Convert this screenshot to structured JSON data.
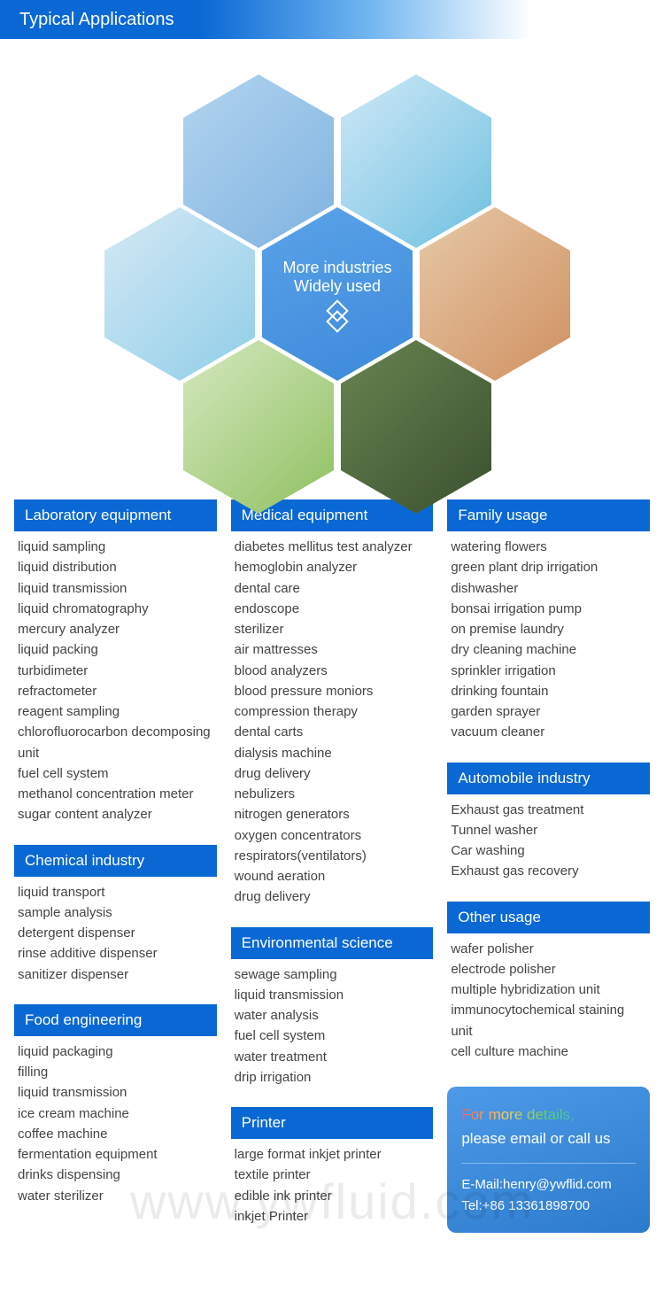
{
  "header": {
    "title": "Typical Applications"
  },
  "hex_center": {
    "line1": "More industries",
    "line2": "Widely used"
  },
  "columns": {
    "left": [
      {
        "title": "Laboratory equipment",
        "items": [
          "liquid sampling",
          "liquid distribution",
          "liquid transmission",
          "liquid chromatography",
          "mercury analyzer",
          "liquid packing",
          "turbidimeter",
          "refractometer",
          "reagent sampling",
          "chlorofluorocarbon decomposing unit",
          "fuel cell system",
          "methanol concentration meter",
          "sugar content analyzer"
        ]
      },
      {
        "title": "Chemical industry",
        "items": [
          "liquid transport",
          "sample analysis",
          "detergent dispenser",
          "rinse additive dispenser",
          "sanitizer dispenser"
        ]
      },
      {
        "title": "Food engineering",
        "items": [
          "liquid packaging",
          "filling",
          "liquid transmission",
          "ice cream machine",
          "coffee machine",
          "fermentation equipment",
          "drinks dispensing",
          "water sterilizer"
        ]
      }
    ],
    "middle": [
      {
        "title": "Medical equipment",
        "items": [
          "diabetes mellitus test analyzer",
          "hemoglobin analyzer",
          "dental care",
          "endoscope",
          "sterilizer",
          "air mattresses",
          "blood analyzers",
          "blood pressure moniors",
          "compression therapy",
          "dental carts",
          "dialysis machine",
          "drug delivery",
          "nebulizers",
          "nitrogen generators",
          "oxygen concentrators",
          "respirators(ventilators)",
          "wound aeration",
          "drug delivery"
        ]
      },
      {
        "title": "Environmental science",
        "items": [
          "sewage sampling",
          "liquid transmission",
          "water analysis",
          "fuel cell system",
          "water treatment",
          "drip irrigation"
        ]
      },
      {
        "title": "Printer",
        "items": [
          "large format inkjet printer",
          "textile printer",
          "edible ink printer",
          "inkjet Printer"
        ]
      }
    ],
    "right": [
      {
        "title": "Family usage",
        "items": [
          "watering flowers",
          "green plant drip irrigation",
          "dishwasher",
          "bonsai irrigation pump",
          "on premise laundry",
          "dry cleaning machine",
          "sprinkler irrigation",
          "drinking fountain",
          "garden sprayer",
          "vacuum cleaner"
        ]
      },
      {
        "title": "Automobile industry",
        "items": [
          "Exhaust gas treatment",
          "Tunnel washer",
          "Car washing",
          "Exhaust gas recovery"
        ]
      },
      {
        "title": "Other usage",
        "items": [
          "wafer polisher",
          "electrode polisher",
          "multiple hybridization unit",
          "immunocytochemical staining unit",
          "cell culture machine"
        ]
      }
    ]
  },
  "contact": {
    "cta_line1": "For more details,",
    "cta_line2": "please email or call us",
    "email_label": "E-Mail:henry@ywflid.com",
    "tel_label": "Tel:+86 13361898700"
  },
  "watermark": "www.ywfluid.com",
  "colors": {
    "brand_blue": "#0968d4",
    "text": "#444444",
    "contact_grad_top": "#4d9ae8",
    "contact_grad_bottom": "#2c7acc"
  }
}
